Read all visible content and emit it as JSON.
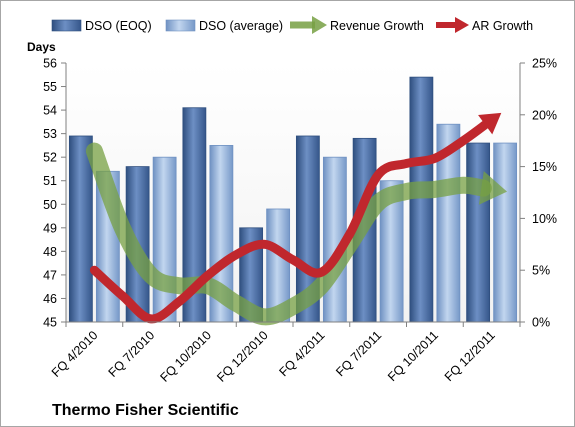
{
  "chart_data": {
    "type": "bar",
    "title": "Thermo Fisher Scientific",
    "ylabel_left": "Days",
    "ylabel_right": "",
    "xlabel": "",
    "left_axis": {
      "min": 45,
      "max": 56,
      "step": 1
    },
    "right_axis": {
      "min": 0,
      "max": 25,
      "step": 5,
      "unit": "%"
    },
    "categories": [
      "FQ 4/2010",
      "FQ 7/2010",
      "FQ 10/2010",
      "FQ 12/2010",
      "FQ 4/2011",
      "FQ 7/2011",
      "FQ 10/2011",
      "FQ 12/2011"
    ],
    "bar_series": [
      {
        "name": "DSO (EOQ)",
        "axis": "left",
        "color": "#4f6fa3",
        "values": [
          52.9,
          51.6,
          54.1,
          49.0,
          52.9,
          52.8,
          55.4,
          52.6
        ]
      },
      {
        "name": "DSO (average)",
        "axis": "left",
        "color": "#93b3da",
        "values": [
          51.4,
          52.0,
          52.5,
          49.8,
          52.0,
          51.0,
          53.4,
          52.6
        ]
      }
    ],
    "line_series": [
      {
        "name": "Revenue Growth",
        "axis": "right",
        "color": "#77a043",
        "x_index": [
          0,
          0.5,
          1,
          1.5,
          2,
          2.5,
          3,
          3.5,
          4,
          4.5,
          5,
          5.5,
          6,
          6.5,
          7
        ],
        "values": [
          16.5,
          9,
          4.5,
          3.5,
          3.5,
          1.8,
          0.5,
          1.5,
          3.5,
          7.5,
          11.5,
          12.6,
          12.8,
          13.2,
          12.8
        ]
      },
      {
        "name": "AR Growth",
        "axis": "right",
        "color": "#c0272d",
        "x_index": [
          0,
          0.5,
          1,
          1.5,
          2,
          2.5,
          3,
          3.5,
          4,
          4.5,
          5,
          5.5,
          6,
          6.5,
          7
        ],
        "values": [
          5,
          2.5,
          0.3,
          2,
          4.5,
          6.5,
          7.5,
          6,
          4.8,
          8.5,
          14.2,
          15.3,
          15.8,
          17.5,
          19.5
        ]
      }
    ],
    "legend": {
      "placement": "top"
    },
    "grid": false
  }
}
